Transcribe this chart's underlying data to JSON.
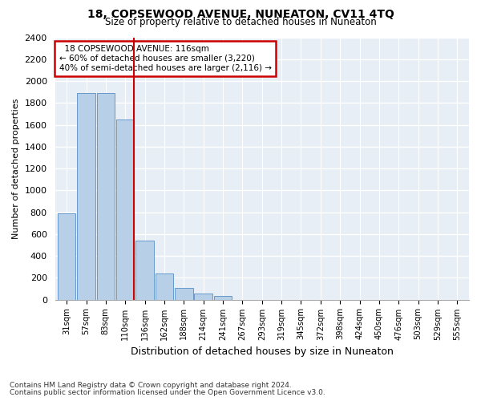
{
  "title": "18, COPSEWOOD AVENUE, NUNEATON, CV11 4TQ",
  "subtitle": "Size of property relative to detached houses in Nuneaton",
  "xlabel": "Distribution of detached houses by size in Nuneaton",
  "ylabel": "Number of detached properties",
  "bar_labels": [
    "31sqm",
    "57sqm",
    "83sqm",
    "110sqm",
    "136sqm",
    "162sqm",
    "188sqm",
    "214sqm",
    "241sqm",
    "267sqm",
    "293sqm",
    "319sqm",
    "345sqm",
    "372sqm",
    "398sqm",
    "424sqm",
    "450sqm",
    "476sqm",
    "503sqm",
    "529sqm",
    "555sqm"
  ],
  "bar_values": [
    790,
    1890,
    1890,
    1650,
    540,
    240,
    110,
    55,
    30,
    0,
    0,
    0,
    0,
    0,
    0,
    0,
    0,
    0,
    0,
    0,
    0
  ],
  "bar_color": "#b8cfe8",
  "bar_edge_color": "#6699cc",
  "property_line_color": "#cc0000",
  "ylim": [
    0,
    2400
  ],
  "yticks": [
    0,
    200,
    400,
    600,
    800,
    1000,
    1200,
    1400,
    1600,
    1800,
    2000,
    2200,
    2400
  ],
  "annotation_title": "18 COPSEWOOD AVENUE: 116sqm",
  "annotation_line1": "← 60% of detached houses are smaller (3,220)",
  "annotation_line2": "40% of semi-detached houses are larger (2,116) →",
  "annotation_box_color": "#cc0000",
  "background_color": "#e8eef5",
  "footer_line1": "Contains HM Land Registry data © Crown copyright and database right 2024.",
  "footer_line2": "Contains public sector information licensed under the Open Government Licence v3.0."
}
